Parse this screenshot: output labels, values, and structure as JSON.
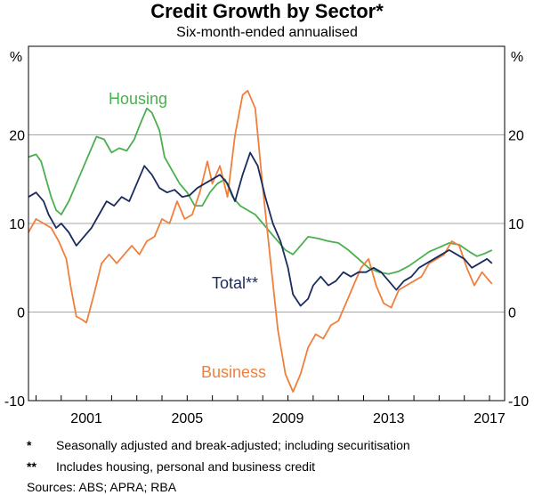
{
  "chart_data": {
    "type": "line",
    "title": "Credit Growth by Sector*",
    "subtitle": "Six-month-ended annualised",
    "y_unit_left": "%",
    "y_unit_right": "%",
    "ylim": [
      -10,
      30
    ],
    "yticks": [
      -10,
      0,
      10,
      20
    ],
    "xlim": [
      1998.7,
      2017.6
    ],
    "xticks": [
      2001,
      2005,
      2009,
      2013,
      2017
    ],
    "series": [
      {
        "name": "Housing",
        "color": "#4ab04f",
        "x": [
          1998.7,
          1999.0,
          1999.2,
          1999.4,
          1999.6,
          1999.8,
          2000.0,
          2000.3,
          2000.6,
          2000.9,
          2001.2,
          2001.4,
          2001.7,
          2002.0,
          2002.3,
          2002.6,
          2002.9,
          2003.1,
          2003.4,
          2003.6,
          2003.9,
          2004.1,
          2004.4,
          2004.7,
          2005.0,
          2005.3,
          2005.6,
          2005.9,
          2006.2,
          2006.5,
          2006.8,
          2007.1,
          2007.4,
          2007.7,
          2008.0,
          2008.3,
          2008.6,
          2008.9,
          2009.2,
          2009.5,
          2009.8,
          2010.2,
          2010.6,
          2011.0,
          2011.4,
          2011.8,
          2012.2,
          2012.6,
          2013.0,
          2013.4,
          2013.8,
          2014.2,
          2014.6,
          2015.0,
          2015.4,
          2015.8,
          2016.2,
          2016.5,
          2016.8,
          2017.1
        ],
        "y": [
          17.5,
          17.8,
          17.0,
          15.0,
          13.0,
          11.5,
          11.0,
          12.5,
          14.5,
          16.5,
          18.5,
          19.8,
          19.5,
          18.0,
          18.5,
          18.2,
          19.5,
          21.0,
          23.0,
          22.5,
          20.5,
          17.5,
          16.0,
          14.5,
          13.5,
          12.0,
          12.0,
          13.5,
          14.5,
          15.0,
          13.0,
          12.0,
          11.5,
          11.0,
          10.0,
          9.0,
          8.0,
          7.0,
          6.5,
          7.5,
          8.5,
          8.3,
          8.0,
          7.8,
          7.0,
          6.0,
          5.0,
          4.5,
          4.3,
          4.6,
          5.2,
          6.0,
          6.8,
          7.3,
          7.8,
          7.6,
          6.8,
          6.3,
          6.6,
          7.0
        ]
      },
      {
        "name": "Total**",
        "color": "#1a2b5e",
        "x": [
          1998.7,
          1999.0,
          1999.3,
          1999.5,
          1999.8,
          2000.0,
          2000.3,
          2000.6,
          2000.9,
          2001.2,
          2001.5,
          2001.8,
          2002.1,
          2002.4,
          2002.7,
          2003.0,
          2003.3,
          2003.6,
          2003.9,
          2004.2,
          2004.5,
          2004.8,
          2005.1,
          2005.4,
          2005.7,
          2006.0,
          2006.3,
          2006.6,
          2006.9,
          2007.2,
          2007.5,
          2007.8,
          2008.1,
          2008.4,
          2008.7,
          2009.0,
          2009.2,
          2009.5,
          2009.8,
          2010.0,
          2010.3,
          2010.6,
          2010.9,
          2011.2,
          2011.5,
          2011.8,
          2012.1,
          2012.4,
          2012.7,
          2013.0,
          2013.3,
          2013.6,
          2013.9,
          2014.2,
          2014.5,
          2014.8,
          2015.1,
          2015.4,
          2015.7,
          2016.0,
          2016.3,
          2016.6,
          2016.9,
          2017.1
        ],
        "y": [
          13.0,
          13.5,
          12.5,
          11.0,
          9.5,
          10.0,
          9.0,
          7.5,
          8.5,
          9.5,
          11.0,
          12.5,
          12.0,
          13.0,
          12.5,
          14.5,
          16.5,
          15.5,
          14.0,
          13.5,
          13.8,
          13.0,
          13.2,
          14.0,
          14.5,
          15.0,
          15.5,
          14.5,
          12.5,
          15.5,
          18.0,
          16.5,
          13.0,
          10.0,
          8.0,
          5.0,
          2.0,
          0.7,
          1.5,
          3.0,
          4.0,
          3.0,
          3.5,
          4.5,
          4.0,
          4.5,
          4.5,
          5.0,
          4.5,
          3.5,
          2.5,
          3.5,
          4.0,
          5.0,
          5.5,
          6.0,
          6.5,
          7.0,
          6.5,
          6.0,
          5.0,
          5.5,
          6.0,
          5.5
        ]
      },
      {
        "name": "Business",
        "color": "#f07f3c",
        "x": [
          1998.7,
          1999.0,
          1999.3,
          1999.6,
          1999.9,
          2000.2,
          2000.4,
          2000.6,
          2000.8,
          2001.0,
          2001.3,
          2001.6,
          2001.9,
          2002.2,
          2002.5,
          2002.8,
          2003.1,
          2003.4,
          2003.7,
          2004.0,
          2004.3,
          2004.6,
          2004.9,
          2005.2,
          2005.5,
          2005.8,
          2006.0,
          2006.3,
          2006.6,
          2006.9,
          2007.2,
          2007.4,
          2007.7,
          2008.0,
          2008.3,
          2008.6,
          2008.9,
          2009.2,
          2009.5,
          2009.8,
          2010.1,
          2010.4,
          2010.7,
          2011.0,
          2011.3,
          2011.6,
          2011.9,
          2012.2,
          2012.5,
          2012.8,
          2013.1,
          2013.4,
          2013.7,
          2014.0,
          2014.3,
          2014.6,
          2014.9,
          2015.2,
          2015.5,
          2015.8,
          2016.1,
          2016.4,
          2016.7,
          2017.0,
          2017.1
        ],
        "y": [
          9.0,
          10.5,
          10.0,
          9.5,
          8.0,
          6.0,
          2.5,
          -0.5,
          -0.8,
          -1.2,
          2.0,
          5.5,
          6.5,
          5.5,
          6.5,
          7.5,
          6.5,
          8.0,
          8.5,
          10.5,
          10.0,
          12.5,
          10.5,
          11.0,
          13.5,
          17.0,
          14.5,
          16.5,
          13.0,
          20.0,
          24.5,
          25.0,
          23.0,
          14.0,
          6.0,
          -2.0,
          -7.0,
          -9.0,
          -7.0,
          -4.0,
          -2.5,
          -3.0,
          -1.5,
          -1.0,
          1.0,
          3.0,
          5.0,
          6.0,
          3.0,
          1.0,
          0.5,
          2.5,
          3.0,
          3.5,
          4.0,
          5.5,
          6.0,
          6.5,
          8.0,
          7.5,
          5.0,
          3.0,
          4.5,
          3.5,
          3.2
        ]
      }
    ],
    "annotations": [
      {
        "text": "Housing",
        "color": "#4ab04f"
      },
      {
        "text": "Total**",
        "color": "#1a2b5e"
      },
      {
        "text": "Business",
        "color": "#f07f3c"
      }
    ]
  },
  "notes": {
    "note1_mark": "*",
    "note1_text": "Seasonally adjusted and break-adjusted; including securitisation",
    "note2_mark": "**",
    "note2_text": "Includes housing, personal and business credit",
    "sources": "Sources:  ABS; APRA; RBA"
  }
}
